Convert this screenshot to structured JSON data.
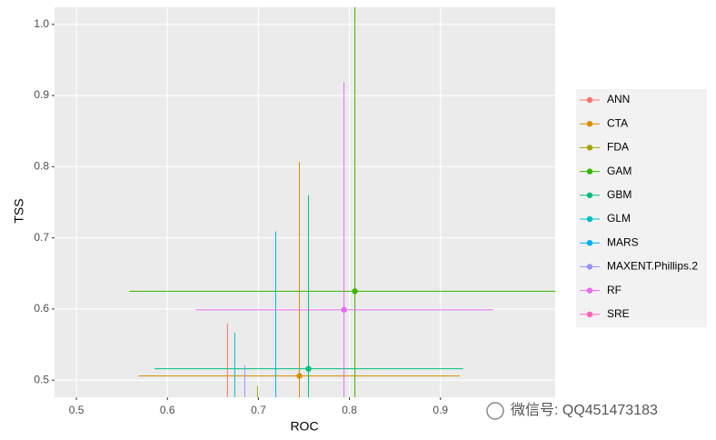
{
  "chart_data": {
    "type": "errorbar-scatter",
    "x_label": "ROC",
    "y_label": "TSS",
    "xlim": [
      0.476,
      1.026
    ],
    "ylim": [
      0.476,
      1.024
    ],
    "xticks": [
      0.5,
      0.6,
      0.7,
      0.8,
      0.9
    ],
    "yticks": [
      0.5,
      0.6,
      0.7,
      0.8,
      0.9,
      {
        "value": 1.0,
        "label": "1.0"
      }
    ],
    "grid": true,
    "legend": "right",
    "series": [
      {
        "name": "ANN",
        "color": "#F8766D",
        "x": 0.666,
        "y": null,
        "xmin": null,
        "xmax": null,
        "ymin": null,
        "ymax": 0.58
      },
      {
        "name": "CTA",
        "color": "#D89000",
        "x": 0.745,
        "y": 0.506,
        "xmin": 0.568,
        "xmax": 0.921,
        "ymin": null,
        "ymax": 0.807
      },
      {
        "name": "FDA",
        "color": "#A3A500",
        "x": 0.699,
        "y": null,
        "xmin": null,
        "xmax": null,
        "ymin": null,
        "ymax": 0.492
      },
      {
        "name": "GAM",
        "color": "#39B600",
        "x": 0.806,
        "y": 0.625,
        "xmin": 0.558,
        "xmax": null,
        "ymin": null,
        "ymax": null
      },
      {
        "name": "GBM",
        "color": "#00BF7D",
        "x": 0.755,
        "y": 0.516,
        "xmin": 0.586,
        "xmax": 0.925,
        "ymin": null,
        "ymax": 0.76
      },
      {
        "name": "GLM",
        "color": "#00BFC4",
        "x": 0.674,
        "y": null,
        "xmin": null,
        "xmax": null,
        "ymin": null,
        "ymax": 0.567
      },
      {
        "name": "MARS",
        "color": "#00B0F6",
        "x": 0.719,
        "y": null,
        "xmin": null,
        "xmax": null,
        "ymin": null,
        "ymax": 0.709
      },
      {
        "name": "MAXENT.Phillips.2",
        "color": "#9590FF",
        "x": 0.685,
        "y": null,
        "xmin": null,
        "xmax": null,
        "ymin": null,
        "ymax": 0.521
      },
      {
        "name": "RF",
        "color": "#E76BF3",
        "x": 0.794,
        "y": 0.599,
        "xmin": 0.631,
        "xmax": 0.958,
        "ymin": null,
        "ymax": 0.919
      },
      {
        "name": "SRE",
        "color": "#FF62BC",
        "x": null,
        "y": null,
        "xmin": null,
        "xmax": null,
        "ymin": null,
        "ymax": null
      }
    ]
  },
  "watermark": "微信号: QQ451473183"
}
